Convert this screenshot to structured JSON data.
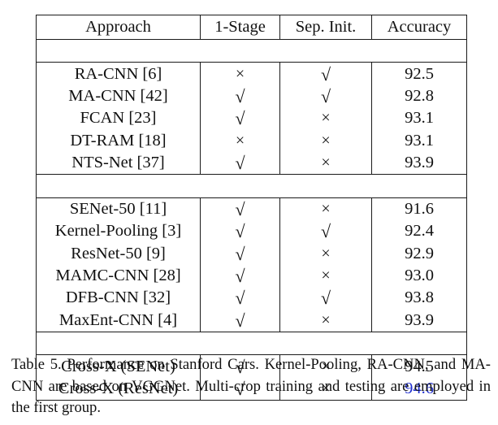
{
  "table": {
    "headers": [
      "Approach",
      "1-Stage",
      "Sep. Init.",
      "Accuracy"
    ],
    "groups": [
      [
        {
          "approach": "RA-CNN [6]",
          "one_stage": "×",
          "sep_init": "√",
          "accuracy": "92.5"
        },
        {
          "approach": "MA-CNN [42]",
          "one_stage": "√",
          "sep_init": "√",
          "accuracy": "92.8"
        },
        {
          "approach": "FCAN [23]",
          "one_stage": "√",
          "sep_init": "×",
          "accuracy": "93.1"
        },
        {
          "approach": "DT-RAM [18]",
          "one_stage": "×",
          "sep_init": "×",
          "accuracy": "93.1"
        },
        {
          "approach": "NTS-Net [37]",
          "one_stage": "√",
          "sep_init": "×",
          "accuracy": "93.9"
        }
      ],
      [
        {
          "approach": "SENet-50 [11]",
          "one_stage": "√",
          "sep_init": "×",
          "accuracy": "91.6"
        },
        {
          "approach": "Kernel-Pooling [3]",
          "one_stage": "√",
          "sep_init": "√",
          "accuracy": "92.4"
        },
        {
          "approach": "ResNet-50 [9]",
          "one_stage": "√",
          "sep_init": "×",
          "accuracy": "92.9"
        },
        {
          "approach": "MAMC-CNN [28]",
          "one_stage": "√",
          "sep_init": "×",
          "accuracy": "93.0"
        },
        {
          "approach": "DFB-CNN [32]",
          "one_stage": "√",
          "sep_init": "√",
          "accuracy": "93.8"
        },
        {
          "approach": "MaxEnt-CNN [4]",
          "one_stage": "√",
          "sep_init": "×",
          "accuracy": "93.9"
        }
      ],
      [
        {
          "approach": "Cross-X (SENet)",
          "one_stage": "√",
          "sep_init": "×",
          "accuracy": "94.5",
          "style": "bold"
        },
        {
          "approach": "Cross-X (ResNet)",
          "one_stage": "√",
          "sep_init": "×",
          "accuracy": "94.6",
          "style": "bold-blue"
        }
      ]
    ]
  },
  "caption": "Table 5. Performance on Stanford Cars.  Kernel-Pooling, RA-CNN, and MA-CNN are based on VGGNet. Multi-crop training and testing are employed in the first group.",
  "colors": {
    "text": "#111111",
    "highlight_blue": "#1f2fd1"
  }
}
